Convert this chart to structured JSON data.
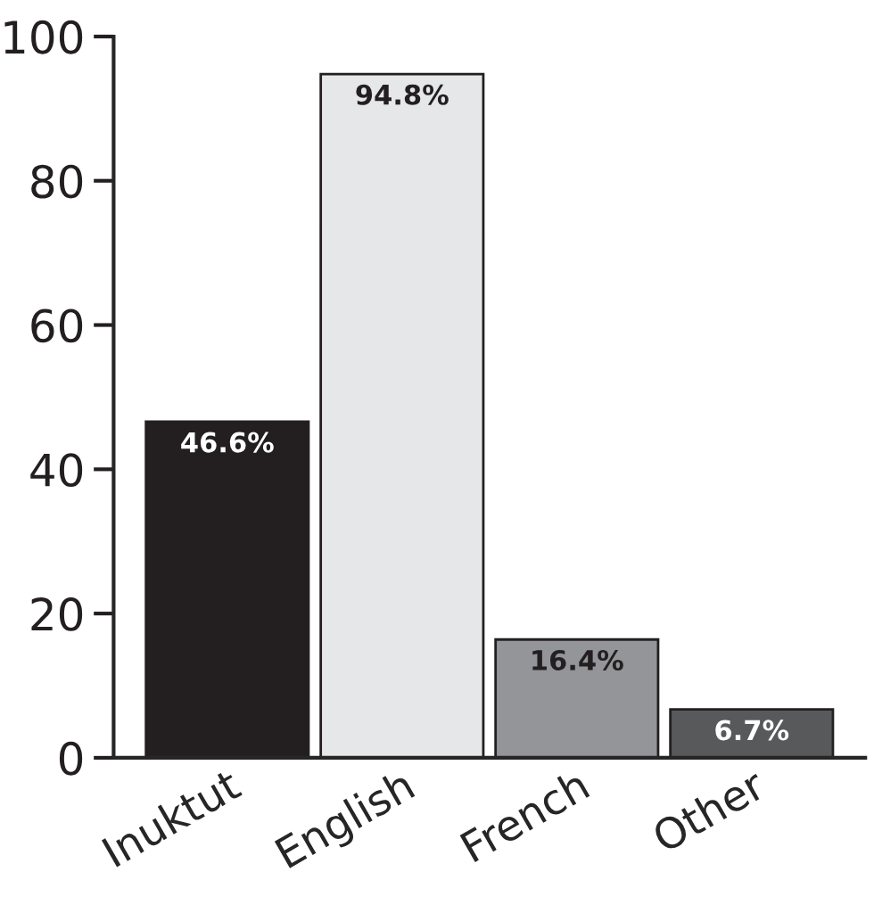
{
  "chart_data": {
    "type": "bar",
    "categories": [
      "Inuktut",
      "English",
      "French",
      "Other"
    ],
    "values": [
      46.6,
      94.8,
      16.4,
      6.7
    ],
    "colors": [
      "#231f20",
      "#e6e7e8",
      "#939598",
      "#58595b"
    ],
    "value_labels": [
      "46.6%",
      "94.8%",
      "16.4%",
      "6.7%"
    ],
    "ylim": [
      0,
      100
    ],
    "yticks": [
      0,
      20,
      40,
      60,
      80,
      100
    ],
    "grid": false,
    "legend": false
  }
}
